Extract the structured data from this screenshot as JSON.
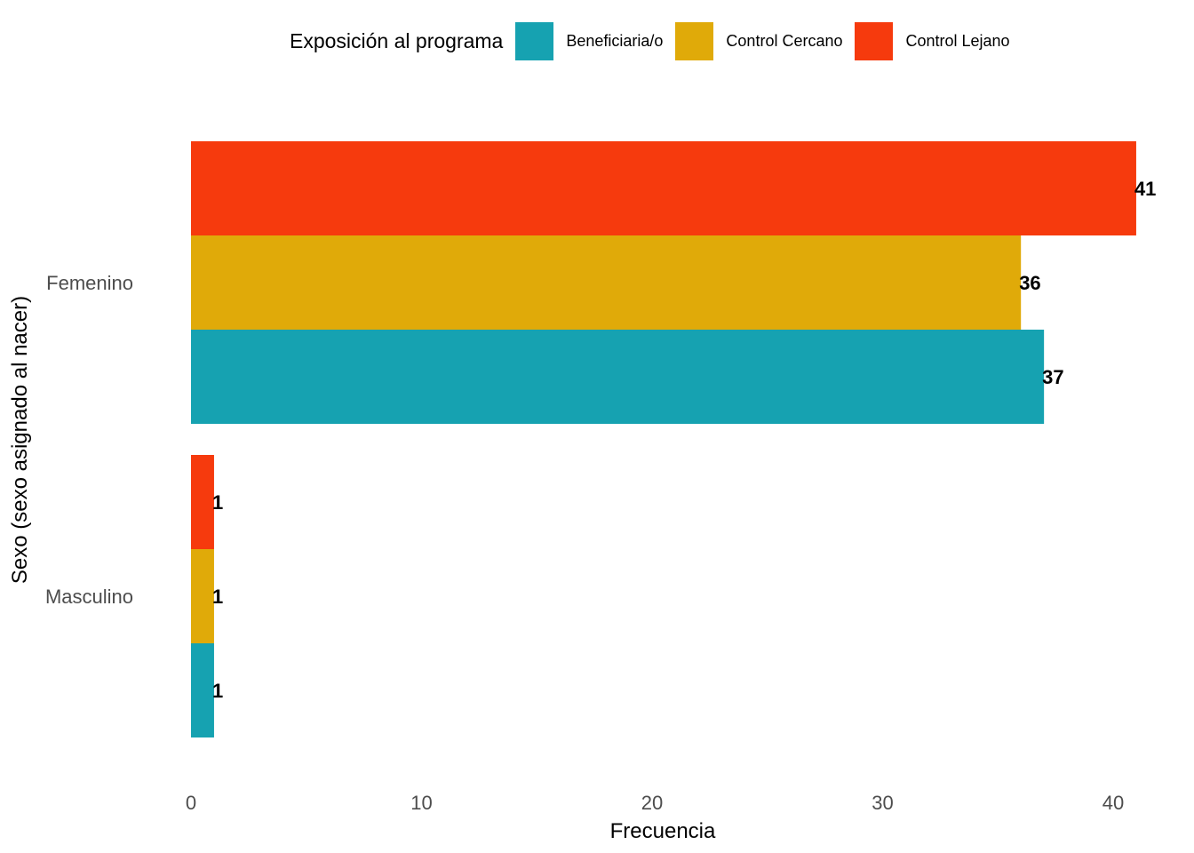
{
  "chart_data": {
    "type": "bar",
    "orientation": "horizontal",
    "categories": [
      "Femenino",
      "Masculino"
    ],
    "series": [
      {
        "name": "Beneficiaria/o",
        "values": [
          37,
          1
        ],
        "color": "#16A2B1"
      },
      {
        "name": "Control Cercano",
        "values": [
          36,
          1
        ],
        "color": "#E0AA09"
      },
      {
        "name": "Control Lejano",
        "values": [
          41,
          1
        ],
        "color": "#F63A0D"
      }
    ],
    "xlabel": "Frecuencia",
    "ylabel": "Sexo (sexo asignado al nacer)",
    "xlim": [
      0,
      41
    ],
    "xticks": [
      "0",
      "10",
      "20",
      "30",
      "40"
    ],
    "grid": false,
    "legend": {
      "title": "Exposición al programa",
      "placement": "top"
    }
  }
}
